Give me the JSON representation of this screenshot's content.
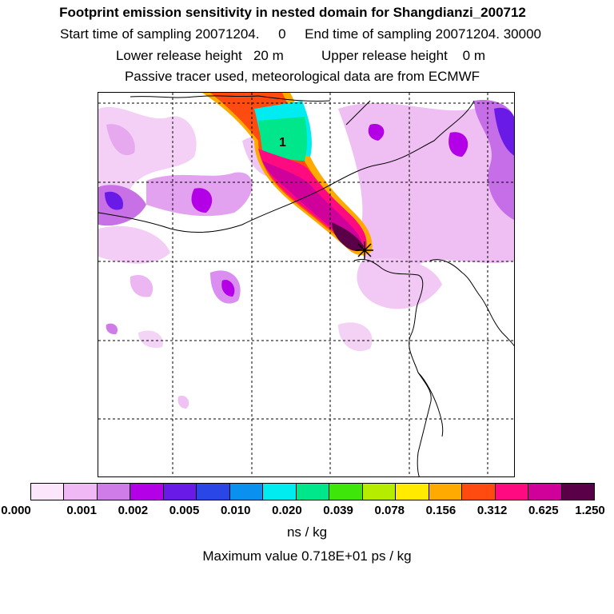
{
  "header": {
    "title": "Footprint emission sensitivity in nested domain for Shangdianzi_200712",
    "sampling_line": "Start time of sampling 20071204.     0     End time of sampling 20071204. 30000",
    "release_line": "Lower release height   20 m          Upper release height    0 m",
    "tracer_line": "Passive tracer used, meteorological data are from ECMWF"
  },
  "map": {
    "plume_label": "1",
    "release_marker": "release-point-cross"
  },
  "colorbar": {
    "colors": [
      "#fbe6fb",
      "#f0b8f4",
      "#d07ce8",
      "#b400e6",
      "#6a1ae6",
      "#2a46e6",
      "#0a90ee",
      "#00ecf0",
      "#00e68a",
      "#3ee60a",
      "#b6ec00",
      "#ffea00",
      "#ffaa00",
      "#ff4a10",
      "#ff0a80",
      "#d0009a",
      "#5a0048"
    ],
    "labels": [
      "0.000",
      "0.001",
      "0.002",
      "0.005",
      "0.010",
      "0.020",
      "0.039",
      "0.078",
      "0.156",
      "0.312",
      "0.625",
      "1.250"
    ],
    "unit": "ns / kg"
  },
  "max_value_text": "Maximum value  0.718E+01 ps / kg"
}
